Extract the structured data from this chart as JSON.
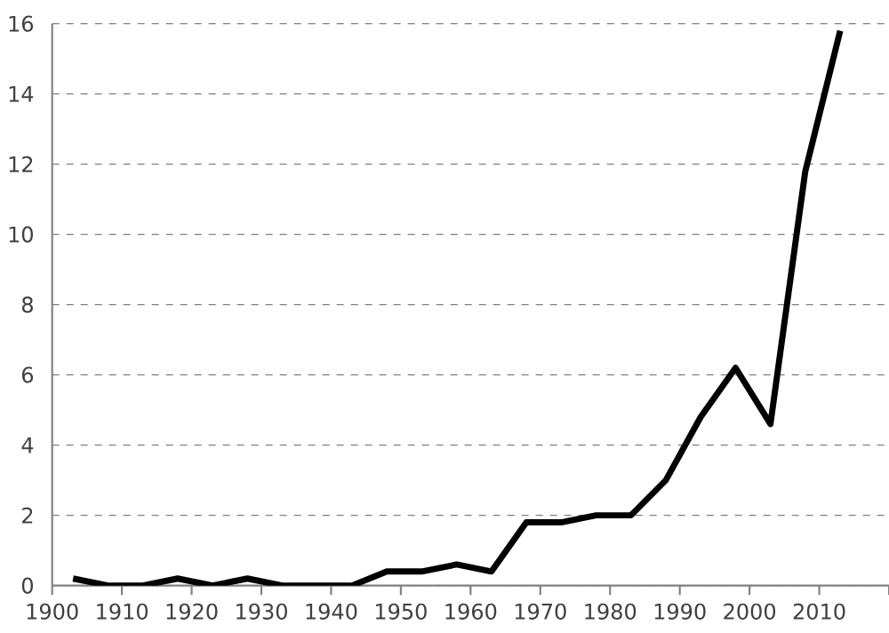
{
  "chart_data": {
    "type": "line",
    "x": [
      1903,
      1908,
      1913,
      1918,
      1923,
      1928,
      1933,
      1938,
      1943,
      1948,
      1953,
      1958,
      1963,
      1968,
      1973,
      1978,
      1983,
      1988,
      1993,
      1998,
      2003,
      2008,
      2013
    ],
    "series": [
      {
        "color": "#000000",
        "values": [
          0.2,
          0,
          0,
          0.2,
          0,
          0.2,
          0,
          0,
          0,
          0.4,
          0.4,
          0.6,
          0.4,
          1.8,
          1.8,
          2.0,
          2.0,
          3.0,
          4.8,
          6.2,
          4.6,
          11.8,
          15.8
        ]
      }
    ],
    "xlim": [
      1900,
      2020
    ],
    "xticks": [
      1900,
      1910,
      1920,
      1930,
      1940,
      1950,
      1960,
      1970,
      1980,
      1990,
      2000,
      2010,
      {
        "value": 2020,
        "label": null
      }
    ],
    "ylim": [
      0,
      16
    ],
    "yticks": [
      0,
      2,
      4,
      6,
      8,
      10,
      12,
      14,
      16
    ],
    "grid": "y",
    "line_style": "solid",
    "marker": "none"
  }
}
